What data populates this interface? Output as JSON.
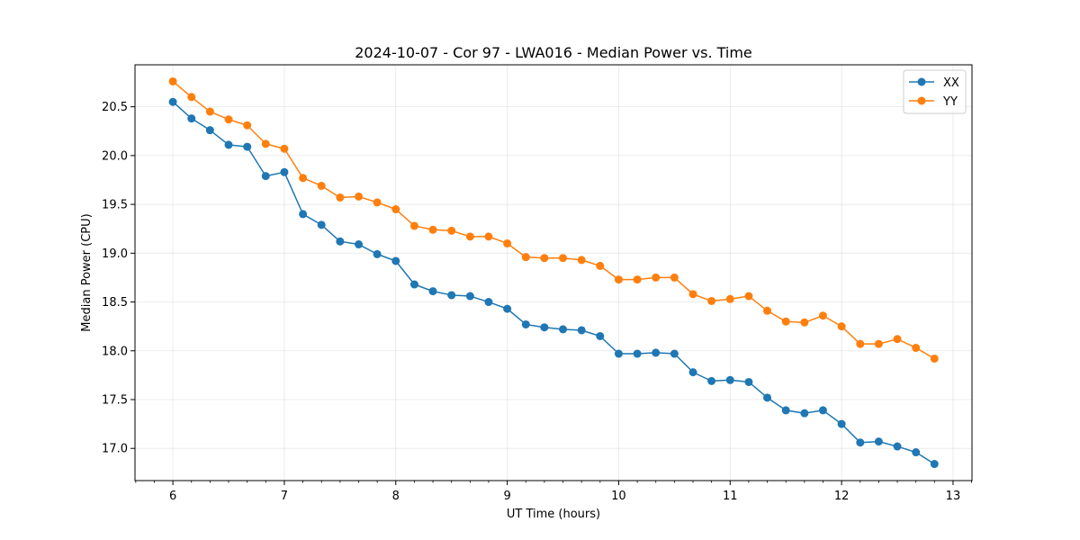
{
  "chart_data": {
    "type": "line",
    "title": "2024-10-07 - Cor 97 - LWA016 - Median Power vs. Time",
    "xlabel": "UT Time (hours)",
    "ylabel": "Median Power (CPU)",
    "xlim": [
      5.66,
      13.17
    ],
    "ylim": [
      16.67,
      20.93
    ],
    "xticks": [
      6,
      7,
      8,
      9,
      10,
      11,
      12,
      13
    ],
    "xtick_labels": [
      "6",
      "7",
      "8",
      "9",
      "10",
      "11",
      "12",
      "13"
    ],
    "yticks": [
      17.0,
      17.5,
      18.0,
      18.5,
      19.0,
      19.5,
      20.0,
      20.5
    ],
    "ytick_labels": [
      "17.0",
      "17.5",
      "18.0",
      "18.5",
      "19.0",
      "19.5",
      "20.0",
      "20.5"
    ],
    "grid": true,
    "legend": "top-right",
    "x": [
      6.0,
      6.167,
      6.333,
      6.5,
      6.667,
      6.833,
      7.0,
      7.167,
      7.333,
      7.5,
      7.667,
      7.833,
      8.0,
      8.167,
      8.333,
      8.5,
      8.667,
      8.833,
      9.0,
      9.167,
      9.333,
      9.5,
      9.667,
      9.833,
      10.0,
      10.167,
      10.333,
      10.5,
      10.667,
      10.833,
      11.0,
      11.167,
      11.333,
      11.5,
      11.667,
      11.833,
      12.0,
      12.167,
      12.333,
      12.5,
      12.667,
      12.833
    ],
    "series": [
      {
        "name": "XX",
        "color": "#1f77b4",
        "values": [
          20.55,
          20.38,
          20.26,
          20.11,
          20.09,
          19.79,
          19.83,
          19.4,
          19.29,
          19.12,
          19.09,
          18.99,
          18.92,
          18.68,
          18.61,
          18.57,
          18.56,
          18.5,
          18.43,
          18.27,
          18.24,
          18.22,
          18.21,
          18.15,
          17.97,
          17.97,
          17.98,
          17.97,
          17.78,
          17.69,
          17.7,
          17.68,
          17.52,
          17.39,
          17.36,
          17.39,
          17.25,
          17.06,
          17.07,
          17.02,
          16.96,
          16.84
        ]
      },
      {
        "name": "YY",
        "color": "#ff7f0e",
        "values": [
          20.76,
          20.6,
          20.45,
          20.37,
          20.31,
          20.12,
          20.07,
          19.77,
          19.69,
          19.57,
          19.58,
          19.52,
          19.45,
          19.28,
          19.24,
          19.23,
          19.17,
          19.17,
          19.1,
          18.96,
          18.95,
          18.95,
          18.93,
          18.87,
          18.73,
          18.73,
          18.75,
          18.75,
          18.58,
          18.51,
          18.53,
          18.56,
          18.41,
          18.3,
          18.29,
          18.36,
          18.25,
          18.07,
          18.07,
          18.12,
          18.03,
          17.92
        ]
      }
    ]
  }
}
